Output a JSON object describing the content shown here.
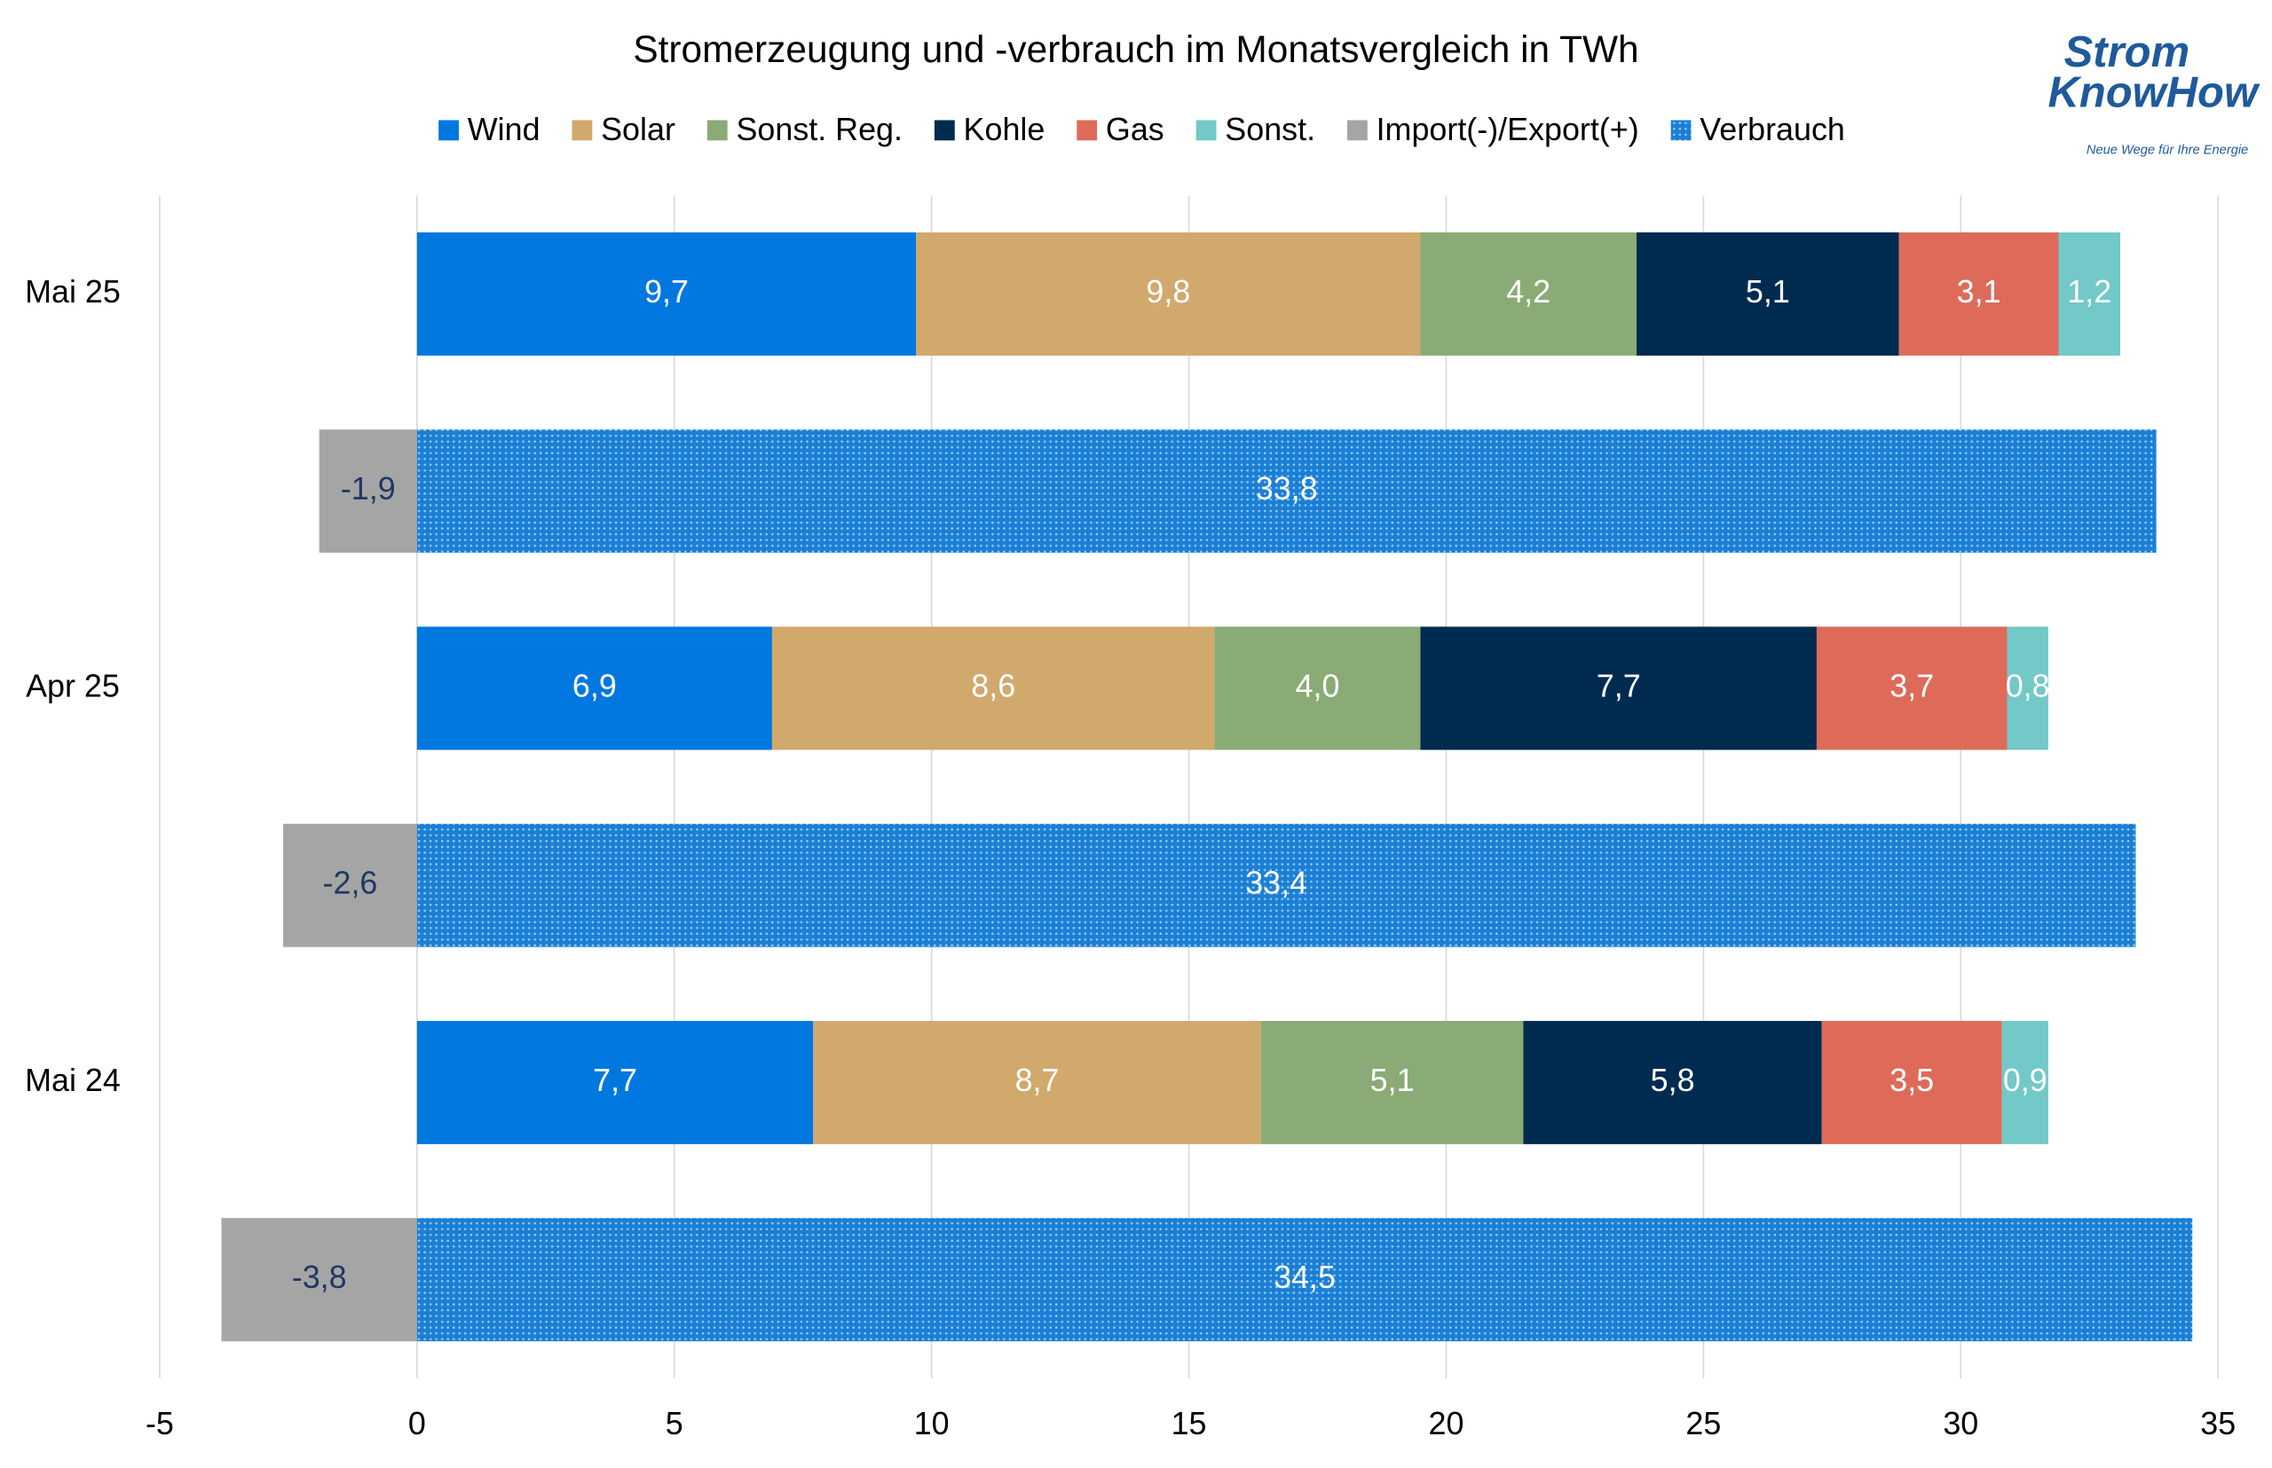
{
  "chart_data": {
    "type": "stacked-barh",
    "title": "Stromerzeugung und -verbrauch im Monatsvergleich in TWh",
    "logo": [
      "Strom",
      "KnowHow",
      "Neue Wege für Ihre Energie"
    ],
    "categories": [
      "Mai 25",
      null,
      "Apr 25",
      null,
      "Mai 24",
      null
    ],
    "series": [
      {
        "name": "Wind",
        "color": "#0078e0",
        "values": [
          9.7,
          null,
          6.9,
          null,
          7.7,
          null
        ],
        "value_labels": [
          "9,7",
          null,
          "6,9",
          null,
          "7,7",
          null
        ]
      },
      {
        "name": "Solar",
        "color": "#d1a96c",
        "values": [
          9.8,
          null,
          8.6,
          null,
          8.7,
          null
        ],
        "value_labels": [
          "9,8",
          null,
          "8,6",
          null,
          "8,7",
          null
        ]
      },
      {
        "name": "Sonst. Reg.",
        "color": "#8aab75",
        "values": [
          4.2,
          null,
          4.0,
          null,
          5.1,
          null
        ],
        "value_labels": [
          "4,2",
          null,
          "4,0",
          null,
          "5,1",
          null
        ]
      },
      {
        "name": "Kohle",
        "color": "#002b50",
        "values": [
          5.1,
          null,
          7.7,
          null,
          5.8,
          null
        ],
        "value_labels": [
          "5,1",
          null,
          "7,7",
          null,
          "5,8",
          null
        ]
      },
      {
        "name": "Gas",
        "color": "#de6b5a",
        "values": [
          3.1,
          null,
          3.7,
          null,
          3.5,
          null
        ],
        "value_labels": [
          "3,1",
          null,
          "3,7",
          null,
          "3,5",
          null
        ]
      },
      {
        "name": "Sonst.",
        "color": "#73c8c8",
        "values": [
          1.2,
          null,
          0.8,
          null,
          0.9,
          null
        ],
        "value_labels": [
          "1,2",
          null,
          "0,8",
          null,
          "0,9",
          null
        ]
      },
      {
        "name": "Import(-)/Export(+)",
        "color": "#a5a5a5",
        "values": [
          null,
          -1.9,
          null,
          -2.6,
          null,
          -3.8
        ],
        "value_labels": [
          null,
          "-1,9",
          null,
          "-2,6",
          null,
          "-3,8"
        ]
      },
      {
        "name": "Verbrauch",
        "color": "#1a7fd6",
        "pattern": "dots",
        "values": [
          null,
          33.8,
          null,
          33.4,
          null,
          34.5
        ],
        "value_labels": [
          null,
          "33,8",
          null,
          "33,4",
          null,
          "34,5"
        ]
      }
    ],
    "xlim": [
      -5,
      35
    ],
    "xticks": [
      -5,
      0,
      5,
      10,
      15,
      20,
      25,
      30,
      35
    ],
    "grid": true
  }
}
